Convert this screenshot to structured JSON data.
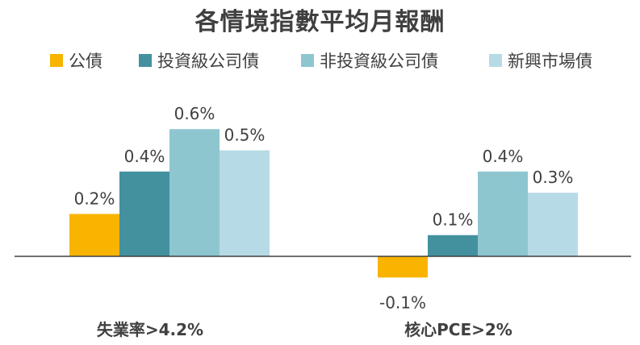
{
  "chart_data": {
    "type": "bar",
    "title": "各情境指數平均月報酬",
    "categories": [
      "失業率>4.2%",
      "核心PCE>2%"
    ],
    "series": [
      {
        "name": "公債",
        "values": [
          0.2,
          -0.1
        ],
        "labels": [
          "0.2%",
          "-0.1%"
        ],
        "color": "#F9B400"
      },
      {
        "name": "投資級公司債",
        "values": [
          0.4,
          0.1
        ],
        "labels": [
          "0.4%",
          "0.1%"
        ],
        "color": "#43919F"
      },
      {
        "name": "非投資級公司債",
        "values": [
          0.6,
          0.4
        ],
        "labels": [
          "0.6%",
          "0.4%"
        ],
        "color": "#8EC6D0"
      },
      {
        "name": "新興市場債",
        "values": [
          0.5,
          0.3
        ],
        "labels": [
          "0.5%",
          "0.3%"
        ],
        "color": "#B7DBE6"
      }
    ],
    "unit": "%",
    "ylim": [
      -0.15,
      0.65
    ],
    "grid": false,
    "legend_position": "top",
    "axis_color": "#404040",
    "text_color": "#404040"
  }
}
